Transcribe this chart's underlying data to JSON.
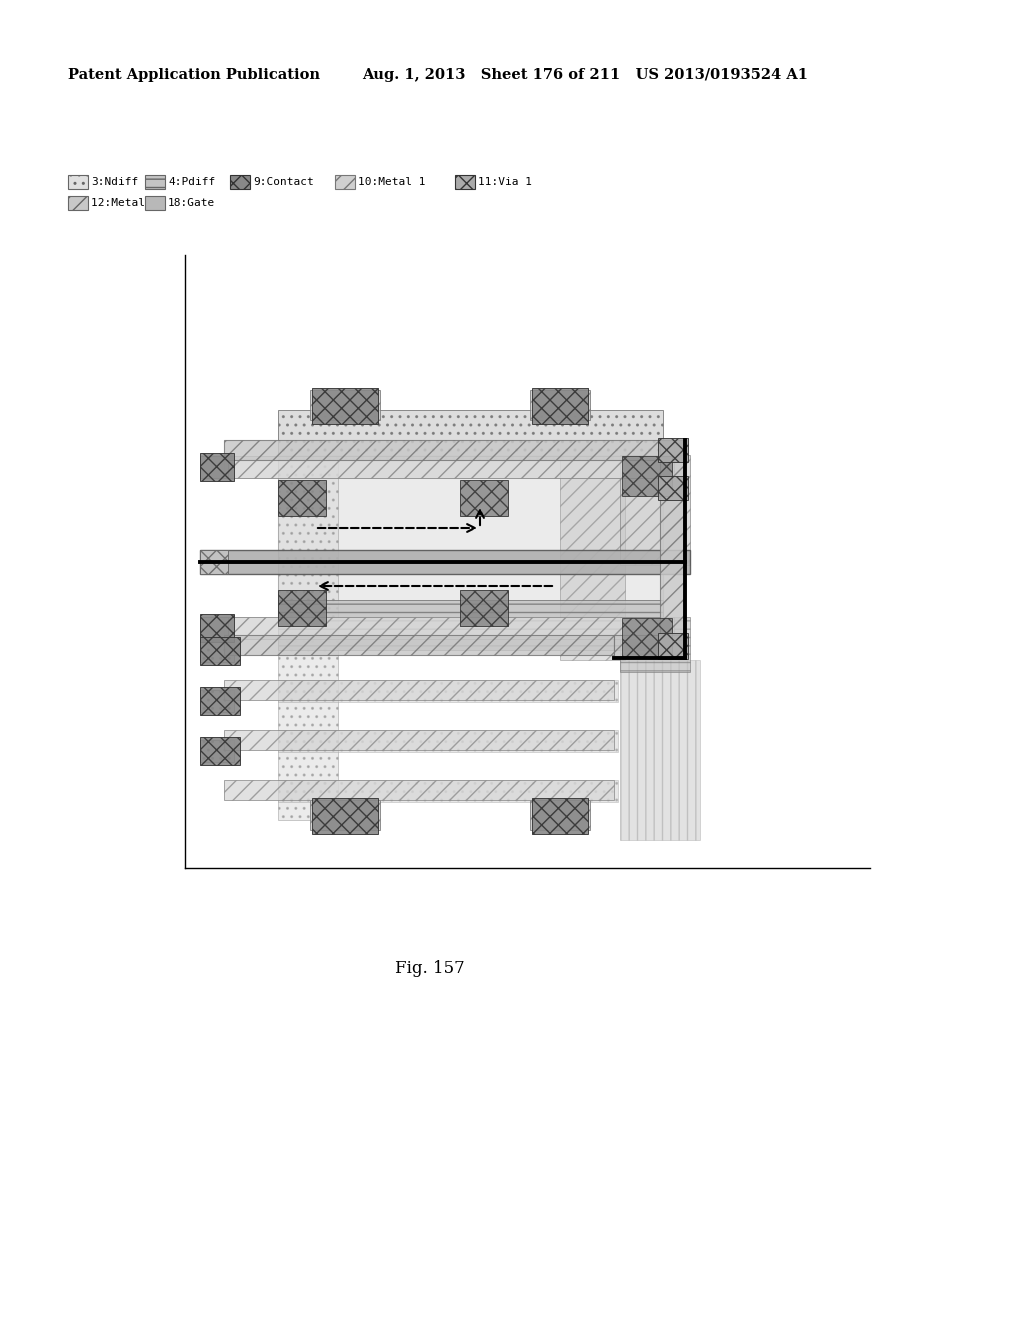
{
  "header_left": "Patent Application Publication",
  "header_middle": "Aug. 1, 2013   Sheet 176 of 211   US 2013/0193524 A1",
  "figure_label": "Fig. 157",
  "bg_color": "#ffffff",
  "fig_width": 10.24,
  "fig_height": 13.2,
  "dpi": 100
}
